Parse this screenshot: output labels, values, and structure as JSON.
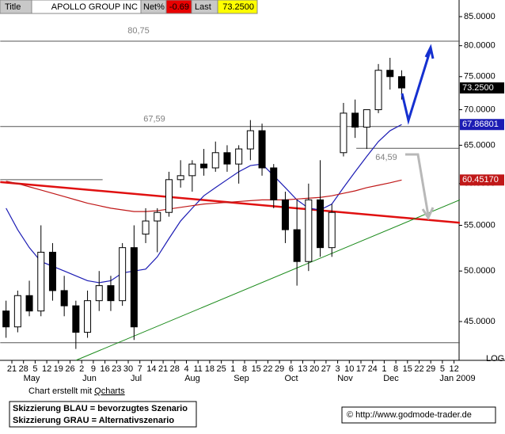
{
  "header": {
    "title_label": "Title",
    "name": "APOLLO GROUP INC",
    "net_label": "Net%",
    "net_value": "-0.69",
    "last_label": "Last",
    "last_value": "73.2500"
  },
  "chart_data": {
    "type": "candlestick",
    "log_scale": true,
    "categories": [
      "21",
      "28",
      "5",
      "12",
      "19",
      "26",
      "2",
      "9",
      "16",
      "23",
      "30",
      "7",
      "14",
      "21",
      "28",
      "4",
      "11",
      "18",
      "25",
      "1",
      "8",
      "15",
      "22",
      "29",
      "6",
      "13",
      "20",
      "27",
      "3",
      "10",
      "17",
      "24",
      "1",
      "8",
      "15",
      "22",
      "29",
      "5",
      "12"
    ],
    "months": [
      "May",
      "Jun",
      "Jul",
      "Aug",
      "Sep",
      "Oct",
      "Nov",
      "Dec",
      "Jan 2009"
    ],
    "x": [
      -0.5,
      0.5,
      1.5,
      2.5,
      3.5,
      4.5,
      5.5,
      6.5,
      7.5,
      8.5,
      9.5,
      10.5,
      11.5,
      12.5,
      13.5,
      14.5,
      15.5,
      16.5,
      17.5,
      18.5,
      19.5,
      20.5,
      21.5,
      22.5,
      23.5,
      24.5,
      25.5,
      26.5,
      27.5,
      28.5,
      29.5,
      30.5,
      31.5,
      32.5,
      33.5
    ],
    "open": [
      46,
      44.5,
      47.5,
      46,
      52,
      48,
      46.5,
      44,
      47,
      48.5,
      47,
      52.5,
      54,
      55.5,
      56.5,
      60.5,
      61,
      62.5,
      62,
      64,
      62.5,
      64.5,
      67,
      62,
      58,
      54.5,
      51,
      58,
      52.5,
      64,
      69.5,
      67.5,
      70,
      76,
      75
    ],
    "high": [
      47,
      48,
      49,
      55,
      53,
      49.5,
      47,
      48,
      50,
      49.5,
      53,
      55,
      57,
      57,
      61.5,
      63,
      63,
      64.5,
      65.5,
      65,
      65,
      68.5,
      68,
      62.5,
      59,
      58,
      60,
      63,
      57.5,
      71,
      71.5,
      70,
      77,
      78,
      76
    ],
    "low": [
      43.5,
      44,
      45.5,
      45.5,
      47,
      45.5,
      42.5,
      43.5,
      46,
      46,
      46.5,
      43.3,
      53,
      52,
      56,
      59.5,
      59,
      61,
      61.5,
      61.5,
      60,
      63,
      61,
      57,
      53,
      48.5,
      50,
      51.5,
      51.5,
      63.5,
      66,
      64.5,
      69.5,
      73,
      71.5
    ],
    "close": [
      44.5,
      47.5,
      46,
      52,
      48,
      46.5,
      44,
      47,
      48.5,
      47,
      52.5,
      44.5,
      55.5,
      56.5,
      60.5,
      61,
      62.5,
      62,
      64,
      62.5,
      64.5,
      67,
      62,
      58,
      54.5,
      51,
      58,
      52.5,
      56.5,
      69.5,
      67.5,
      70,
      76,
      75,
      73.25
    ],
    "last_close_label": "73.2500",
    "up_color": "#ffffff",
    "down_color": "#000000",
    "lines": [
      {
        "color": "#1c1cb4",
        "end_label": "67.86801",
        "values": [
          57,
          54.5,
          52.5,
          51,
          50.5,
          50,
          49.5,
          49,
          48.8,
          49,
          49.8,
          50,
          50.2,
          51.5,
          53.5,
          55.5,
          57,
          58.5,
          59.5,
          60.5,
          61.5,
          62.3,
          62.5,
          61,
          59.5,
          58,
          57,
          56.8,
          57.5,
          59.5,
          61.5,
          63.5,
          65.5,
          67,
          67.86801
        ]
      },
      {
        "color": "#c01818",
        "end_label": "60.45170",
        "values": [
          60.3,
          60,
          59.6,
          59.2,
          58.8,
          58.4,
          58,
          57.6,
          57.3,
          57,
          56.8,
          56.6,
          56.6,
          56.7,
          56.9,
          57.1,
          57.3,
          57.5,
          57.6,
          57.7,
          57.8,
          57.9,
          58,
          58,
          58,
          58.1,
          58.2,
          58.3,
          58.5,
          58.8,
          59.1,
          59.5,
          59.8,
          60.1,
          60.4517
        ]
      }
    ],
    "trendlines": [
      {
        "color": "#e01010",
        "x": [
          -1,
          38.5
        ],
        "values": [
          60.2,
          55.3
        ]
      },
      {
        "color": "#1a8a1a",
        "x": [
          5.5,
          38.5
        ],
        "values": [
          41.5,
          58
        ]
      }
    ],
    "levels": [
      {
        "value": 80.75,
        "label": "80,75",
        "x": [
          -1,
          38.5
        ]
      },
      {
        "value": 67.59,
        "label": "67,59",
        "x": [
          -1,
          38.5
        ]
      },
      {
        "value": 64.59,
        "label": "64,59",
        "x": [
          29.6,
          38.5
        ]
      }
    ],
    "hlines": [
      {
        "value": 60.5,
        "x": [
          -1,
          7.8
        ]
      },
      {
        "value": 43.05,
        "x": [
          -1,
          38.5
        ]
      }
    ],
    "ylim": [
      41.5,
      88
    ],
    "yticks": [
      {
        "value": 45,
        "label": "45.0000"
      },
      {
        "value": 50,
        "label": "50.0000"
      },
      {
        "value": 55,
        "label": "55.0000"
      },
      {
        "value": 60,
        "label": "60.0000"
      },
      {
        "value": 65,
        "label": "65.0000"
      },
      {
        "value": 70,
        "label": "70.0000"
      },
      {
        "value": 75,
        "label": "75.0000"
      },
      {
        "value": 80,
        "label": "80.0000"
      },
      {
        "value": 85,
        "label": "85.0000"
      }
    ],
    "scale_label": "LOG"
  },
  "footer": {
    "credit": "Chart erstellt mit ",
    "credit_link": "Qcharts",
    "legend_blue": "Skizzierung BLAU = bevorzugtes Szenario",
    "legend_gray": "Skizzierung GRAU = Alternativszenario",
    "url": "© http://www.godmode-trader.de"
  }
}
